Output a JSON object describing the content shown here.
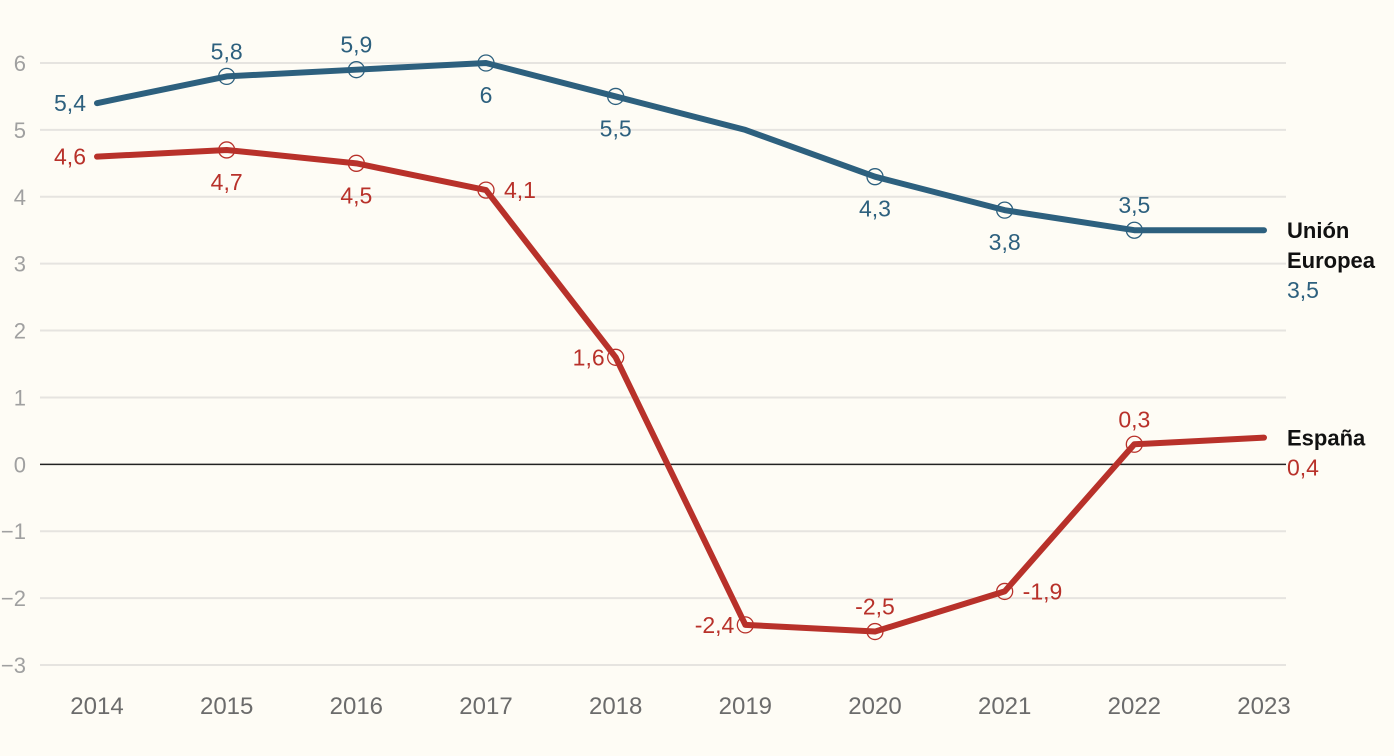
{
  "chart_data": {
    "type": "line",
    "title": "",
    "xlabel": "",
    "ylabel": "",
    "x": [
      "2014",
      "2015",
      "2016",
      "2017",
      "2018",
      "2019",
      "2020",
      "2021",
      "2022",
      "2023"
    ],
    "ylim": [
      -3,
      6
    ],
    "yticks": [
      6,
      5,
      4,
      3,
      2,
      1,
      0,
      -1,
      -2,
      -3
    ],
    "ytick_labels": [
      "6",
      "5",
      "4",
      "3",
      "2",
      "1",
      "0",
      "−1",
      "−2",
      "−3"
    ],
    "grid": true,
    "zero_line": true,
    "legend": "inline-right",
    "series": [
      {
        "name": "Unión Europea",
        "name_lines": [
          "Unión",
          "Europea"
        ],
        "color": "#2d607e",
        "values": [
          5.4,
          5.8,
          5.9,
          6.0,
          5.5,
          5.0,
          4.3,
          3.8,
          3.5,
          3.5
        ],
        "labels": [
          "5,4",
          "5,8",
          "5,9",
          "6",
          "5,5",
          "",
          "4,3",
          "3,8",
          "3,5",
          ""
        ],
        "label_pos": [
          "left",
          "above",
          "above",
          "below",
          "below",
          "none",
          "below",
          "below",
          "above",
          "none"
        ],
        "markers": [
          false,
          true,
          true,
          true,
          true,
          false,
          true,
          true,
          true,
          false
        ],
        "end_label": "3,5"
      },
      {
        "name": "España",
        "name_lines": [
          "España"
        ],
        "color": "#b8312a",
        "values": [
          4.6,
          4.7,
          4.5,
          4.1,
          1.6,
          -2.4,
          -2.5,
          -1.9,
          0.3,
          0.4
        ],
        "labels": [
          "4,6",
          "4,7",
          "4,5",
          "4,1",
          "1,6",
          "-2,4",
          "-2,5",
          "-1,9",
          "0,3",
          ""
        ],
        "label_pos": [
          "left",
          "below",
          "below",
          "right",
          "left",
          "left",
          "above",
          "right",
          "above",
          "none"
        ],
        "markers": [
          false,
          true,
          true,
          true,
          true,
          true,
          true,
          true,
          true,
          false
        ],
        "end_label": "0,4"
      }
    ]
  }
}
